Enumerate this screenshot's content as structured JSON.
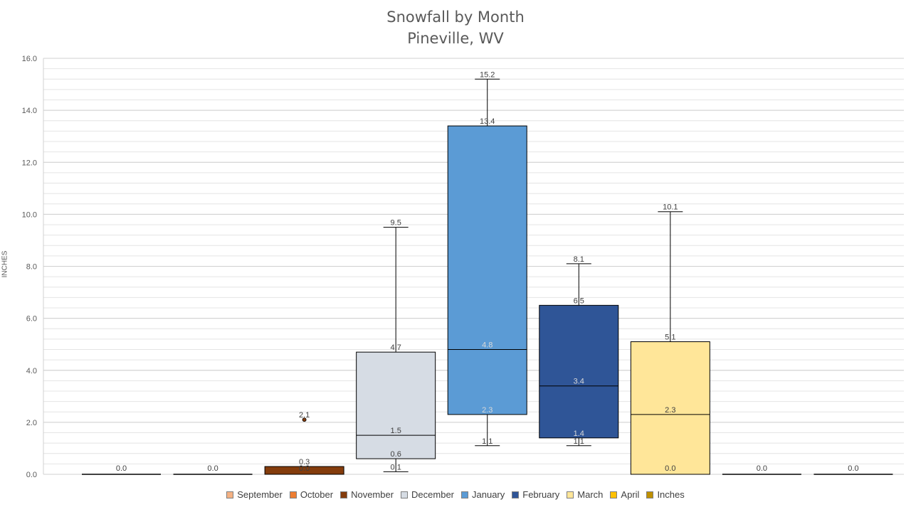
{
  "chart_data": {
    "type": "boxplot",
    "title": "Snowfall by Month",
    "subtitle": "Pineville, WV",
    "ylabel": "INCHES",
    "ylim": [
      0,
      16
    ],
    "yticks": [
      "0.0",
      "2.0",
      "4.0",
      "6.0",
      "8.0",
      "10.0",
      "12.0",
      "14.0",
      "16.0"
    ],
    "grid": true,
    "legend_position": "bottom",
    "legend": [
      "September",
      "October",
      "November",
      "December",
      "January",
      "February",
      "March",
      "April",
      "Inches"
    ],
    "series": [
      {
        "name": "September",
        "color": "#f4b183",
        "min": 0.0,
        "q1": 0.0,
        "median": 0.0,
        "q3": 0.0,
        "max": 0.0,
        "outliers": [],
        "labels": [
          "0.0"
        ]
      },
      {
        "name": "October",
        "color": "#ed7d31",
        "min": 0.0,
        "q1": 0.0,
        "median": 0.0,
        "q3": 0.0,
        "max": 0.0,
        "outliers": [],
        "labels": [
          "0.0"
        ]
      },
      {
        "name": "November",
        "color": "#843c0c",
        "min": 0.0,
        "q1": 0.0,
        "median": 0.0,
        "q3": 0.3,
        "max": 0.3,
        "outliers": [
          2.1
        ],
        "labels": [
          "2.1",
          "0.3",
          "0.0",
          "0.0"
        ]
      },
      {
        "name": "December",
        "color": "#d6dce4",
        "min": 0.1,
        "q1": 0.6,
        "median": 1.5,
        "q3": 4.7,
        "max": 9.5,
        "outliers": [],
        "labels": [
          "9.5",
          "4.7",
          "1.5",
          "0.6",
          "0.1"
        ]
      },
      {
        "name": "January",
        "color": "#5b9bd5",
        "min": 1.1,
        "q1": 2.3,
        "median": 4.8,
        "q3": 13.4,
        "max": 15.2,
        "outliers": [],
        "labels": [
          "15.2",
          "13.4",
          "4.8",
          "2.3",
          "1.1"
        ]
      },
      {
        "name": "February",
        "color": "#2f5597",
        "min": 1.1,
        "q1": 1.4,
        "median": 3.4,
        "q3": 6.5,
        "max": 8.1,
        "outliers": [],
        "labels": [
          "8.1",
          "6.5",
          "3.4",
          "1.4",
          "1.1"
        ]
      },
      {
        "name": "March",
        "color": "#ffe699",
        "min": 0.0,
        "q1": 0.0,
        "median": 2.3,
        "q3": 5.1,
        "max": 10.1,
        "outliers": [],
        "labels": [
          "10.1",
          "5.1",
          "2.3",
          "0.0"
        ]
      },
      {
        "name": "April",
        "color": "#ffc000",
        "min": 0.0,
        "q1": 0.0,
        "median": 0.0,
        "q3": 0.0,
        "max": 0.0,
        "outliers": [],
        "labels": [
          "0.0"
        ]
      },
      {
        "name": "Inches",
        "color": "#bf9000",
        "min": 0.0,
        "q1": 0.0,
        "median": 0.0,
        "q3": 0.0,
        "max": 0.0,
        "outliers": [],
        "labels": [
          "0.0"
        ]
      }
    ]
  }
}
